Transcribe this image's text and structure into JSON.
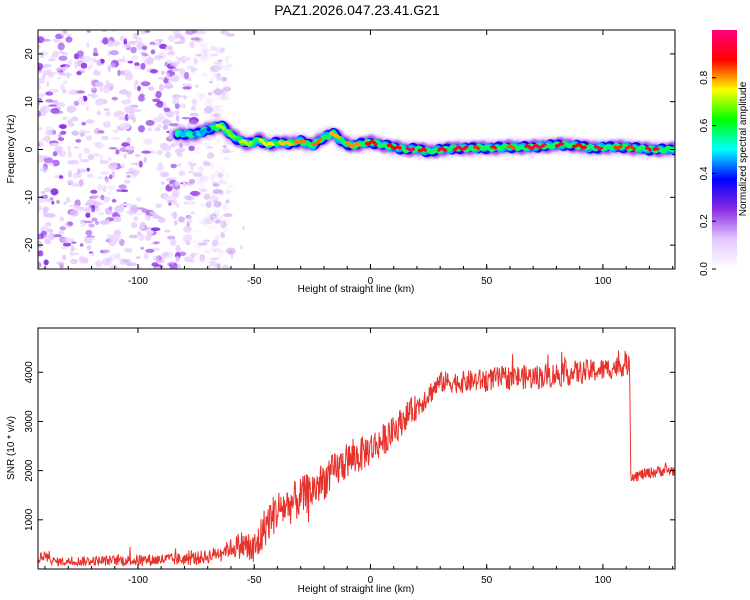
{
  "title": "PAZ1.2026.047.23.41.G21",
  "chart_data": [
    {
      "type": "heatmap",
      "name": "spectrogram",
      "xlabel": "Height of straight line (km)",
      "ylabel": "Frequency (Hz)",
      "xlim": [
        -143,
        131
      ],
      "ylim": [
        -25,
        25
      ],
      "xticks": [
        -100,
        -50,
        0,
        50,
        100
      ],
      "yticks": [
        -20,
        -10,
        0,
        10,
        20
      ],
      "colorbar": {
        "label": "Normalized spectral amplitude",
        "range": [
          0,
          1
        ],
        "ticks": [
          0.0,
          0.2,
          0.4,
          0.6,
          0.8
        ],
        "colormap": [
          "#ffffff",
          "#e3c6ff",
          "#8a2be2",
          "#0000ff",
          "#00ffff",
          "#00ff00",
          "#ffff00",
          "#ff0000",
          "#ff007f"
        ]
      },
      "ridge": {
        "x": [
          -83,
          -75,
          -68,
          -64,
          -60,
          -56,
          -52,
          -48,
          -44,
          -40,
          -35,
          -30,
          -25,
          -20,
          -16,
          -14,
          -12,
          -8,
          -4,
          0,
          5,
          10,
          15,
          20,
          25,
          30,
          40,
          50,
          60,
          70,
          80,
          90,
          95,
          100,
          110,
          120,
          131
        ],
        "y": [
          3.2,
          3.2,
          4.5,
          5.0,
          3.0,
          1.8,
          1.2,
          2.0,
          1.0,
          1.5,
          1.2,
          1.8,
          0.8,
          2.5,
          3.5,
          2.5,
          1.5,
          0.8,
          1.2,
          1.5,
          1.0,
          0.5,
          0.0,
          0.2,
          -0.5,
          0.0,
          0.3,
          0.3,
          0.5,
          0.5,
          1.0,
          0.8,
          0.2,
          0.5,
          0.5,
          0.0,
          0.0
        ]
      },
      "noise_region_x": [
        -143,
        -68
      ]
    },
    {
      "type": "line",
      "name": "snr",
      "xlabel": "Height of straight line (km)",
      "ylabel": "SNR (10 * v/v)",
      "xlim": [
        -143,
        131
      ],
      "ylim": [
        0,
        4900
      ],
      "xticks": [
        -100,
        -50,
        0,
        50,
        100
      ],
      "yticks": [
        1000,
        2000,
        3000,
        4000
      ],
      "color": "#e8312b",
      "envelope": {
        "x": [
          -143,
          -140,
          -135,
          -100,
          -80,
          -70,
          -62,
          -55,
          -50,
          -45,
          -40,
          -35,
          -30,
          -25,
          -20,
          -15,
          -10,
          -5,
          0,
          5,
          10,
          15,
          20,
          25,
          30,
          40,
          50,
          60,
          70,
          80,
          90,
          100,
          105,
          110,
          111.5,
          112,
          115,
          120,
          125,
          131
        ],
        "y": [
          150,
          200,
          150,
          180,
          200,
          250,
          400,
          500,
          350,
          900,
          1200,
          1300,
          1450,
          1600,
          1800,
          2000,
          2200,
          2300,
          2450,
          2600,
          2800,
          3100,
          3300,
          3550,
          3800,
          3800,
          3850,
          3900,
          3900,
          3950,
          4000,
          4050,
          4100,
          4150,
          4150,
          1900,
          1900,
          1950,
          2000,
          2000
        ]
      },
      "noise_amplitude": {
        "x": [
          -143,
          -62,
          -50,
          -30,
          0,
          30,
          80,
          111,
          112,
          131
        ],
        "y": [
          80,
          150,
          420,
          420,
          350,
          220,
          260,
          220,
          120,
          120
        ]
      }
    }
  ]
}
